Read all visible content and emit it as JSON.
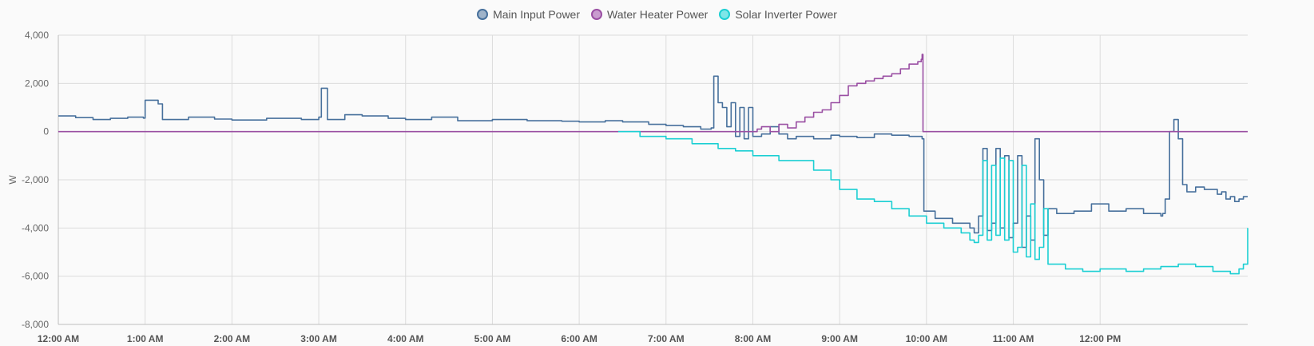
{
  "chart_data": {
    "type": "line",
    "ylabel": "W",
    "ylim": [
      -8000,
      4000
    ],
    "yticks": [
      4000,
      2000,
      0,
      -2000,
      -4000,
      -6000,
      -8000
    ],
    "ytick_labels": [
      "4,000",
      "2,000",
      "0",
      "-2,000",
      "-4,000",
      "-6,000",
      "-8,000"
    ],
    "xlim": [
      0,
      13.7
    ],
    "xticks": [
      0,
      1,
      2,
      3,
      4,
      5,
      6,
      7,
      8,
      9,
      10,
      11,
      12
    ],
    "xtick_labels": [
      "12:00 AM",
      "1:00 AM",
      "2:00 AM",
      "3:00 AM",
      "4:00 AM",
      "5:00 AM",
      "6:00 AM",
      "7:00 AM",
      "8:00 AM",
      "9:00 AM",
      "10:00 AM",
      "11:00 AM",
      "12:00 PM"
    ],
    "x_unit_note": "hours after 12:00 AM",
    "grid": true,
    "legend_position": "top-center",
    "series": [
      {
        "name": "Main Input Power",
        "color": "#47709c",
        "fill": "#9fb3c9",
        "x": [
          0,
          0.2,
          0.4,
          0.6,
          0.8,
          0.98,
          1.0,
          1.15,
          1.2,
          1.5,
          1.8,
          2.0,
          2.4,
          2.8,
          3.0,
          3.03,
          3.1,
          3.3,
          3.5,
          3.8,
          4.0,
          4.3,
          4.6,
          5.0,
          5.4,
          5.8,
          6.0,
          6.3,
          6.5,
          6.8,
          7.0,
          7.2,
          7.4,
          7.52,
          7.55,
          7.6,
          7.65,
          7.7,
          7.75,
          7.8,
          7.85,
          7.9,
          7.95,
          8.0,
          8.1,
          8.2,
          8.3,
          8.4,
          8.5,
          8.7,
          8.9,
          9.0,
          9.2,
          9.4,
          9.6,
          9.8,
          9.95,
          9.97,
          10.1,
          10.3,
          10.5,
          10.55,
          10.6,
          10.65,
          10.7,
          10.75,
          10.8,
          10.85,
          10.9,
          10.95,
          11.0,
          11.05,
          11.1,
          11.15,
          11.2,
          11.25,
          11.3,
          11.35,
          11.4,
          11.5,
          11.7,
          11.9,
          12.1,
          12.3,
          12.5,
          12.7,
          12.72,
          12.75,
          12.8,
          12.85,
          12.9,
          12.95,
          13.0,
          13.1,
          13.2,
          13.35,
          13.4,
          13.45,
          13.5,
          13.55,
          13.6,
          13.65,
          13.7
        ],
        "values": [
          650,
          580,
          500,
          550,
          600,
          560,
          1300,
          1150,
          500,
          600,
          520,
          480,
          550,
          500,
          600,
          1800,
          500,
          700,
          650,
          550,
          500,
          600,
          450,
          500,
          450,
          430,
          400,
          450,
          400,
          300,
          250,
          200,
          100,
          150,
          2300,
          1200,
          1000,
          200,
          1200,
          -200,
          1000,
          -300,
          1000,
          -200,
          -100,
          200,
          -100,
          -300,
          -200,
          -300,
          -150,
          -200,
          -250,
          -100,
          -150,
          -200,
          -300,
          -3300,
          -3600,
          -3800,
          -4000,
          -4200,
          -3500,
          -700,
          -4100,
          -3800,
          -700,
          -4000,
          -1000,
          -4400,
          -3800,
          -1000,
          -4800,
          -3500,
          -4500,
          -300,
          -2000,
          -4300,
          -3200,
          -3400,
          -3300,
          -3000,
          -3300,
          -3200,
          -3400,
          -3500,
          -3400,
          -2800,
          0,
          500,
          -300,
          -2200,
          -2500,
          -2300,
          -2400,
          -2600,
          -2500,
          -2800,
          -2700,
          -2900,
          -2800,
          -2700,
          -2700
        ]
      },
      {
        "name": "Water Heater Power",
        "color": "#9a4fa3",
        "fill": "#c99ccf",
        "x": [
          0,
          8.05,
          8.1,
          8.2,
          8.3,
          8.4,
          8.5,
          8.6,
          8.7,
          8.8,
          8.9,
          9.0,
          9.1,
          9.2,
          9.3,
          9.4,
          9.5,
          9.6,
          9.7,
          9.8,
          9.9,
          9.94,
          9.95,
          9.96,
          13.7
        ],
        "values": [
          0,
          100,
          200,
          0,
          300,
          150,
          400,
          600,
          800,
          900,
          1200,
          1500,
          1900,
          2000,
          2100,
          2200,
          2300,
          2400,
          2600,
          2800,
          2900,
          3000,
          3200,
          0,
          0
        ]
      },
      {
        "name": "Solar Inverter Power",
        "color": "#1ccfd3",
        "fill": "#7fe6e8",
        "x": [
          6.45,
          6.7,
          7.0,
          7.3,
          7.6,
          7.8,
          8.0,
          8.3,
          8.5,
          8.7,
          8.9,
          9.0,
          9.2,
          9.4,
          9.6,
          9.8,
          10.0,
          10.2,
          10.4,
          10.5,
          10.55,
          10.6,
          10.65,
          10.7,
          10.75,
          10.8,
          10.85,
          10.9,
          10.95,
          11.0,
          11.05,
          11.1,
          11.15,
          11.2,
          11.25,
          11.3,
          11.35,
          11.4,
          11.6,
          11.8,
          12.0,
          12.3,
          12.5,
          12.7,
          12.9,
          13.1,
          13.3,
          13.5,
          13.6,
          13.65,
          13.7
        ],
        "values": [
          0,
          -200,
          -300,
          -500,
          -700,
          -800,
          -1000,
          -1200,
          -1200,
          -1600,
          -2000,
          -2400,
          -2800,
          -2900,
          -3200,
          -3500,
          -3800,
          -4000,
          -4200,
          -4500,
          -4600,
          -4300,
          -1200,
          -4500,
          -1400,
          -4300,
          -1100,
          -4500,
          -1200,
          -5000,
          -4800,
          -1400,
          -5200,
          -3000,
          -5300,
          -4800,
          -3200,
          -5500,
          -5700,
          -5800,
          -5700,
          -5800,
          -5700,
          -5600,
          -5500,
          -5600,
          -5800,
          -5900,
          -5700,
          -5500,
          -4000
        ]
      }
    ]
  }
}
